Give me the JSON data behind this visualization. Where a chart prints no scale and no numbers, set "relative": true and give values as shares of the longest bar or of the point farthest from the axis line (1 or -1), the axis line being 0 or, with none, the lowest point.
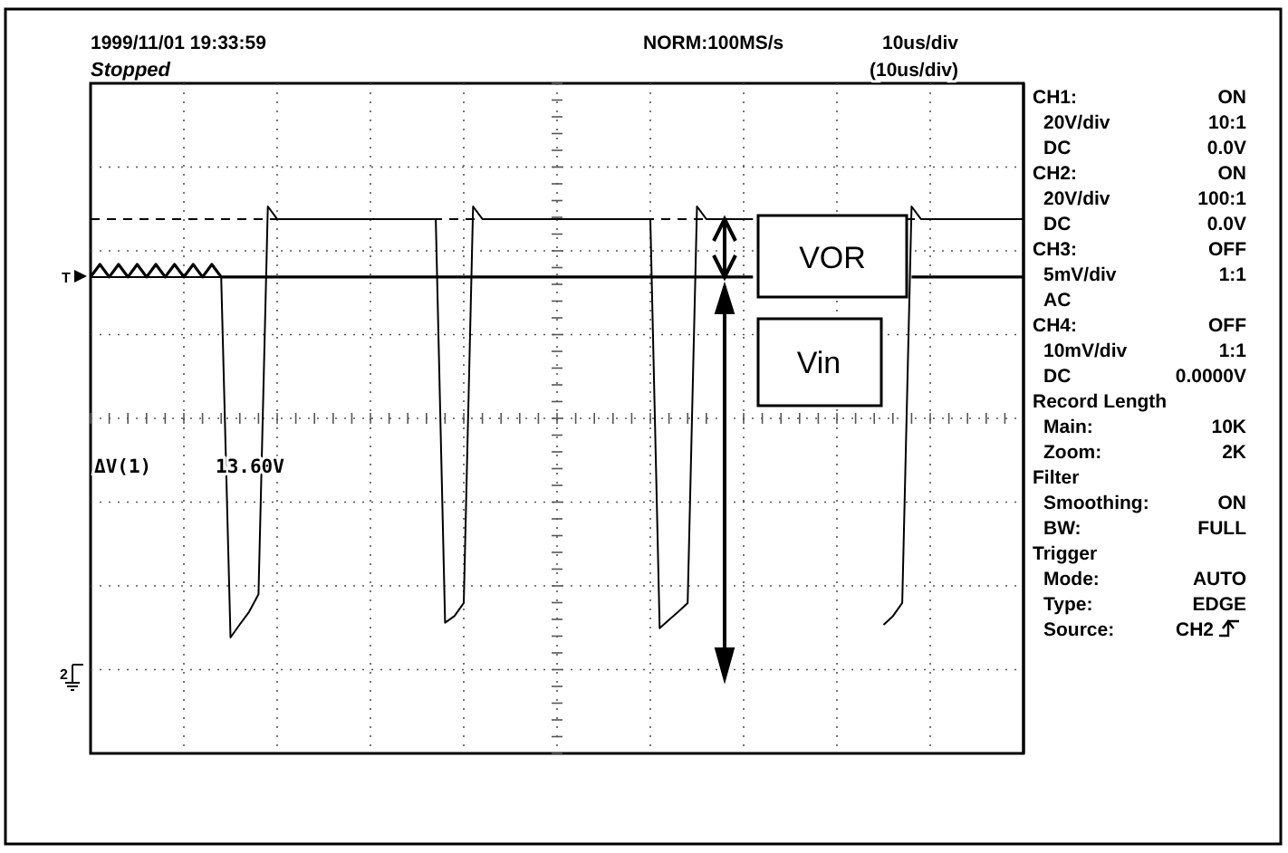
{
  "chart_data": [
    {
      "type": "line",
      "title": "1999/11/01  19:33:59",
      "subtitle": "Stopped",
      "relative": true,
      "grid": true,
      "categories": [
        null,
        null,
        null,
        null,
        null,
        null,
        null,
        null,
        null,
        null,
        null,
        null,
        null,
        null,
        null,
        null,
        null,
        null,
        null,
        null,
        null,
        null,
        null,
        null,
        null,
        null,
        null,
        null,
        null,
        null,
        null,
        null,
        null,
        null,
        null,
        null,
        null,
        null,
        null,
        null,
        null,
        null,
        null,
        null,
        null,
        null,
        null,
        null,
        null,
        null,
        null,
        null,
        null,
        null,
        null,
        null,
        null,
        null,
        null,
        null,
        null,
        null,
        null,
        null,
        null,
        null,
        null,
        null,
        null,
        null,
        null,
        null,
        null,
        null,
        null,
        null,
        null,
        null,
        null,
        null,
        null,
        null,
        null,
        null,
        null,
        null,
        null,
        null,
        null,
        null,
        null,
        null,
        null,
        null,
        null,
        null,
        null,
        null,
        null,
        null,
        null
      ],
      "series": [
        {
          "color": "#000000",
          "values": [
            0.871,
            0.894,
            0.871,
            0.894,
            0.871,
            0.894,
            0.871,
            0.894,
            0.871,
            0.894,
            0.871,
            0.894,
            0.871,
            0.894,
            0.871,
            0.871,
            0.871,
            0.871,
            0.871,
            0.871,
            0.871,
            0.871,
            0.871,
            0.871,
            0.871,
            0.871,
            0.871,
            0.871,
            0.871,
            0.871,
            0.871,
            0.871,
            0.871,
            0.871,
            0.871,
            0.871,
            0.871,
            0.871,
            0.871,
            0.871,
            0.871,
            0.871,
            0.871,
            0.871,
            0.871,
            0.871,
            0.871,
            0.871,
            0.871,
            0.871,
            0.871,
            0.871,
            0.871,
            0.871,
            0.871,
            0.871,
            0.871,
            0.871,
            0.871,
            0.871,
            0.871,
            0.871,
            0.871,
            0.871,
            0.871,
            0.871,
            0.871,
            0.871,
            0.871,
            0.871,
            0.871,
            0.871,
            null,
            null,
            null,
            null,
            null,
            null,
            null,
            null,
            null,
            null,
            null,
            null,
            null,
            null,
            null,
            null,
            0.871,
            0.871,
            0.871,
            0.871,
            0.871,
            0.871,
            0.871,
            0.871,
            0.871,
            0.871,
            0.871,
            0.871,
            0.871
          ]
        },
        {
          "color": "#000000",
          "values": [
            0.871,
            0.871,
            0.871,
            0.871,
            0.871,
            0.871,
            0.871,
            0.871,
            0.871,
            0.871,
            0.871,
            0.871,
            0.871,
            0.871,
            0.871,
            0.212,
            0.236,
            0.259,
            0.291,
            1.0,
            0.977,
            0.977,
            0.977,
            0.977,
            0.977,
            0.977,
            0.977,
            0.977,
            0.977,
            0.977,
            0.977,
            0.977,
            0.977,
            0.977,
            0.977,
            0.977,
            0.977,
            0.977,
            0.239,
            0.251,
            0.275,
            1.0,
            0.977,
            0.977,
            0.977,
            0.977,
            0.977,
            0.977,
            0.977,
            0.977,
            0.977,
            0.977,
            0.977,
            0.977,
            0.977,
            0.977,
            0.977,
            0.977,
            0.977,
            0.977,
            0.977,
            0.229,
            0.244,
            0.259,
            0.275,
            1.0,
            0.977,
            0.977,
            0.977,
            0.977,
            0.977,
            0.977,
            null,
            null,
            null,
            null,
            null,
            null,
            null,
            null,
            null,
            null,
            null,
            null,
            null,
            0.235,
            0.251,
            0.275,
            1.0,
            0.977,
            0.977,
            0.977,
            0.977,
            0.977,
            0.977,
            0.977,
            0.977,
            0.977,
            0.977,
            0.977,
            0.977
          ]
        }
      ],
      "ref_lines": [
        {
          "axis": "y",
          "value": 0.977,
          "line_style": "dashed"
        }
      ],
      "annotations": [
        "NORM:100MS/s",
        "10us/div",
        "(10us/div)",
        "ΔV(1)",
        "13.60V",
        "VOR",
        "Vin",
        "T",
        "2"
      ]
    },
    {
      "type": "other",
      "annotations": [
        "CH1:\tON",
        " 20V/div\t10:1",
        " DC\t0.0V",
        "CH2:\tON",
        " 20V/div\t100:1",
        " DC\t0.0V",
        "CH3:\tOFF",
        " 5mV/div\t1:1",
        " AC",
        "CH4:\tOFF",
        " 10mV/div\t1:1",
        " DC\t0.0000V",
        "Record Length",
        " Main:\t10K",
        " Zoom:\t2K",
        "Filter",
        " Smoothing:\tON",
        " BW:\tFULL",
        "Trigger",
        " Mode:\tAUTO",
        " Type:\tEDGE",
        " Source:\tCH2"
      ]
    }
  ]
}
